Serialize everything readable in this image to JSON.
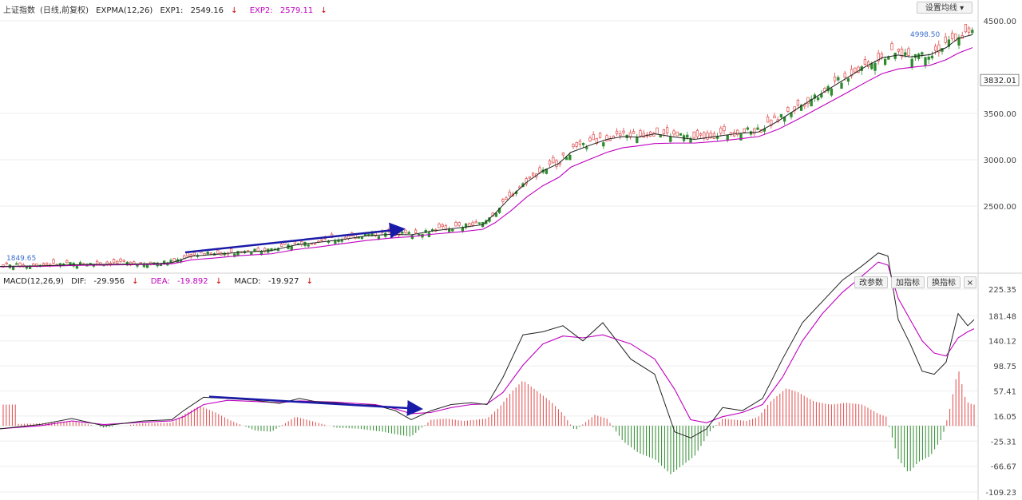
{
  "header_top": {
    "index_name": "上证指数",
    "period": "(日线,前复权)",
    "indicator": "EXPMA(12,26)",
    "exp1_label": "EXP1:",
    "exp1_value": "2549.16",
    "exp2_label": "EXP2:",
    "exp2_value": "2579.11",
    "down_arrow": "↓"
  },
  "header_bottom": {
    "indicator": "MACD(12,26,9)",
    "dif_label": "DIF:",
    "dif_value": "-29.956",
    "dea_label": "DEA:",
    "dea_value": "-19.892",
    "macd_label": "MACD:",
    "macd_value": "-19.927",
    "down_arrow": "↓"
  },
  "buttons": {
    "set_ma": "设置均线 ▾",
    "params": "改参数",
    "add_indicator": "加指标",
    "switch_indicator": "换指标",
    "close": "×"
  },
  "colors": {
    "up": "#e04a4a",
    "down": "#2e8b2e",
    "exp1": "#222222",
    "exp2": "#c000c0",
    "arrow": "#1a1aa8",
    "grid": "#eeeeee"
  },
  "chart_data": [
    {
      "type": "candlestick",
      "title": "上证指数 (日线,前复权) EXPMA(12,26)",
      "y_ticks": [
        "4500.00",
        "3500.00",
        "3000.00",
        "2500.00"
      ],
      "current_price_label": "3832.01",
      "high_label": "4998.50",
      "low_label": "1849.65",
      "exp1_path": [
        [
          0,
          1849
        ],
        [
          50,
          1855
        ],
        [
          100,
          1868
        ],
        [
          150,
          1872
        ],
        [
          200,
          1880
        ],
        [
          216,
          1890
        ],
        [
          240,
          1960
        ],
        [
          270,
          1978
        ],
        [
          300,
          2000
        ],
        [
          340,
          2020
        ],
        [
          370,
          2080
        ],
        [
          400,
          2110
        ],
        [
          430,
          2140
        ],
        [
          460,
          2180
        ],
        [
          490,
          2195
        ],
        [
          515,
          2190
        ],
        [
          540,
          2230
        ],
        [
          580,
          2270
        ],
        [
          605,
          2300
        ],
        [
          620,
          2420
        ],
        [
          640,
          2600
        ],
        [
          660,
          2760
        ],
        [
          680,
          2880
        ],
        [
          700,
          2960
        ],
        [
          715,
          3080
        ],
        [
          740,
          3160
        ],
        [
          760,
          3220
        ],
        [
          780,
          3250
        ],
        [
          800,
          3245
        ],
        [
          820,
          3280
        ],
        [
          845,
          3245
        ],
        [
          870,
          3220
        ],
        [
          900,
          3255
        ],
        [
          925,
          3285
        ],
        [
          950,
          3300
        ],
        [
          975,
          3420
        ],
        [
          1000,
          3560
        ],
        [
          1030,
          3720
        ],
        [
          1060,
          3880
        ],
        [
          1085,
          4010
        ],
        [
          1105,
          4100
        ],
        [
          1125,
          4130
        ],
        [
          1140,
          4110
        ],
        [
          1165,
          4135
        ],
        [
          1185,
          4210
        ],
        [
          1200,
          4310
        ],
        [
          1218,
          4350
        ]
      ],
      "exp2_path": [
        [
          0,
          1845
        ],
        [
          50,
          1850
        ],
        [
          100,
          1860
        ],
        [
          150,
          1866
        ],
        [
          200,
          1872
        ],
        [
          216,
          1878
        ],
        [
          240,
          1920
        ],
        [
          270,
          1940
        ],
        [
          300,
          1965
        ],
        [
          340,
          1985
        ],
        [
          370,
          2030
        ],
        [
          400,
          2060
        ],
        [
          430,
          2095
        ],
        [
          460,
          2130
        ],
        [
          490,
          2155
        ],
        [
          515,
          2170
        ],
        [
          540,
          2195
        ],
        [
          580,
          2225
        ],
        [
          605,
          2250
        ],
        [
          620,
          2320
        ],
        [
          640,
          2450
        ],
        [
          660,
          2600
        ],
        [
          680,
          2720
        ],
        [
          700,
          2810
        ],
        [
          715,
          2920
        ],
        [
          740,
          3010
        ],
        [
          760,
          3080
        ],
        [
          780,
          3130
        ],
        [
          800,
          3150
        ],
        [
          820,
          3175
        ],
        [
          845,
          3180
        ],
        [
          870,
          3180
        ],
        [
          900,
          3200
        ],
        [
          925,
          3225
        ],
        [
          950,
          3250
        ],
        [
          975,
          3330
        ],
        [
          1000,
          3440
        ],
        [
          1030,
          3580
        ],
        [
          1060,
          3720
        ],
        [
          1085,
          3840
        ],
        [
          1105,
          3930
        ],
        [
          1125,
          3980
        ],
        [
          1140,
          3995
        ],
        [
          1165,
          4020
        ],
        [
          1185,
          4080
        ],
        [
          1200,
          4150
        ],
        [
          1218,
          4210
        ]
      ],
      "annotation_arrow": {
        "from": [
          232,
          2000
        ],
        "to": [
          503,
          2250
        ]
      }
    },
    {
      "type": "macd",
      "title": "MACD(12,26,9)",
      "y_ticks": [
        "225.35",
        "181.48",
        "140.12",
        "98.75",
        "57.41",
        "16.05",
        "-25.31",
        "-66.67",
        "-109.23"
      ],
      "dif_path": [
        [
          0,
          -5
        ],
        [
          50,
          2
        ],
        [
          90,
          12
        ],
        [
          130,
          0
        ],
        [
          180,
          8
        ],
        [
          215,
          10
        ],
        [
          230,
          25
        ],
        [
          255,
          47
        ],
        [
          285,
          45
        ],
        [
          320,
          42
        ],
        [
          350,
          37
        ],
        [
          375,
          45
        ],
        [
          395,
          40
        ],
        [
          420,
          38
        ],
        [
          445,
          35
        ],
        [
          470,
          34
        ],
        [
          495,
          25
        ],
        [
          515,
          10
        ],
        [
          540,
          25
        ],
        [
          565,
          35
        ],
        [
          590,
          38
        ],
        [
          610,
          35
        ],
        [
          630,
          80
        ],
        [
          655,
          150
        ],
        [
          680,
          155
        ],
        [
          705,
          165
        ],
        [
          730,
          140
        ],
        [
          755,
          170
        ],
        [
          790,
          110
        ],
        [
          820,
          85
        ],
        [
          845,
          -10
        ],
        [
          865,
          -20
        ],
        [
          885,
          -5
        ],
        [
          905,
          30
        ],
        [
          930,
          25
        ],
        [
          955,
          45
        ],
        [
          980,
          110
        ],
        [
          1005,
          170
        ],
        [
          1030,
          205
        ],
        [
          1055,
          240
        ],
        [
          1078,
          262
        ],
        [
          1100,
          285
        ],
        [
          1112,
          280
        ],
        [
          1125,
          175
        ],
        [
          1140,
          135
        ],
        [
          1155,
          90
        ],
        [
          1170,
          85
        ],
        [
          1185,
          105
        ],
        [
          1200,
          185
        ],
        [
          1212,
          165
        ],
        [
          1220,
          175
        ]
      ],
      "dea_path": [
        [
          0,
          -5
        ],
        [
          50,
          0
        ],
        [
          90,
          8
        ],
        [
          130,
          2
        ],
        [
          180,
          6
        ],
        [
          215,
          8
        ],
        [
          230,
          15
        ],
        [
          255,
          35
        ],
        [
          285,
          42
        ],
        [
          320,
          40
        ],
        [
          350,
          38
        ],
        [
          375,
          41
        ],
        [
          395,
          40
        ],
        [
          420,
          39
        ],
        [
          445,
          37
        ],
        [
          470,
          35
        ],
        [
          495,
          28
        ],
        [
          515,
          20
        ],
        [
          540,
          22
        ],
        [
          565,
          30
        ],
        [
          590,
          35
        ],
        [
          610,
          36
        ],
        [
          630,
          55
        ],
        [
          655,
          100
        ],
        [
          680,
          135
        ],
        [
          705,
          148
        ],
        [
          730,
          145
        ],
        [
          755,
          150
        ],
        [
          790,
          135
        ],
        [
          820,
          110
        ],
        [
          845,
          60
        ],
        [
          865,
          10
        ],
        [
          885,
          5
        ],
        [
          905,
          15
        ],
        [
          930,
          22
        ],
        [
          955,
          35
        ],
        [
          980,
          80
        ],
        [
          1005,
          140
        ],
        [
          1030,
          185
        ],
        [
          1055,
          220
        ],
        [
          1078,
          245
        ],
        [
          1100,
          270
        ],
        [
          1112,
          265
        ],
        [
          1125,
          210
        ],
        [
          1140,
          175
        ],
        [
          1155,
          140
        ],
        [
          1170,
          120
        ],
        [
          1185,
          115
        ],
        [
          1200,
          145
        ],
        [
          1212,
          155
        ],
        [
          1220,
          160
        ]
      ],
      "histogram": [
        [
          20,
          3
        ],
        [
          50,
          4
        ],
        [
          90,
          8
        ],
        [
          130,
          -3
        ],
        [
          180,
          4
        ],
        [
          215,
          5
        ],
        [
          232,
          20
        ],
        [
          250,
          33
        ],
        [
          270,
          22
        ],
        [
          290,
          8
        ],
        [
          320,
          -8
        ],
        [
          340,
          -10
        ],
        [
          370,
          15
        ],
        [
          390,
          8
        ],
        [
          420,
          -3
        ],
        [
          450,
          -5
        ],
        [
          480,
          -10
        ],
        [
          500,
          -15
        ],
        [
          515,
          -18
        ],
        [
          540,
          10
        ],
        [
          560,
          12
        ],
        [
          580,
          8
        ],
        [
          610,
          12
        ],
        [
          625,
          30
        ],
        [
          640,
          55
        ],
        [
          655,
          75
        ],
        [
          670,
          60
        ],
        [
          690,
          40
        ],
        [
          705,
          20
        ],
        [
          720,
          -8
        ],
        [
          745,
          18
        ],
        [
          760,
          12
        ],
        [
          780,
          -25
        ],
        [
          800,
          -45
        ],
        [
          820,
          -55
        ],
        [
          840,
          -80
        ],
        [
          855,
          -65
        ],
        [
          870,
          -50
        ],
        [
          890,
          -8
        ],
        [
          905,
          12
        ],
        [
          920,
          10
        ],
        [
          935,
          8
        ],
        [
          950,
          15
        ],
        [
          965,
          40
        ],
        [
          985,
          62
        ],
        [
          1000,
          55
        ],
        [
          1020,
          40
        ],
        [
          1040,
          35
        ],
        [
          1060,
          38
        ],
        [
          1080,
          35
        ],
        [
          1100,
          20
        ],
        [
          1110,
          15
        ],
        [
          1125,
          -55
        ],
        [
          1138,
          -78
        ],
        [
          1150,
          -60
        ],
        [
          1165,
          -50
        ],
        [
          1180,
          -20
        ],
        [
          1190,
          30
        ],
        [
          1200,
          95
        ],
        [
          1210,
          40
        ],
        [
          1218,
          35
        ]
      ],
      "annotation_arrow": {
        "from": [
          262,
          48
        ],
        "to": [
          525,
          28
        ]
      }
    }
  ]
}
